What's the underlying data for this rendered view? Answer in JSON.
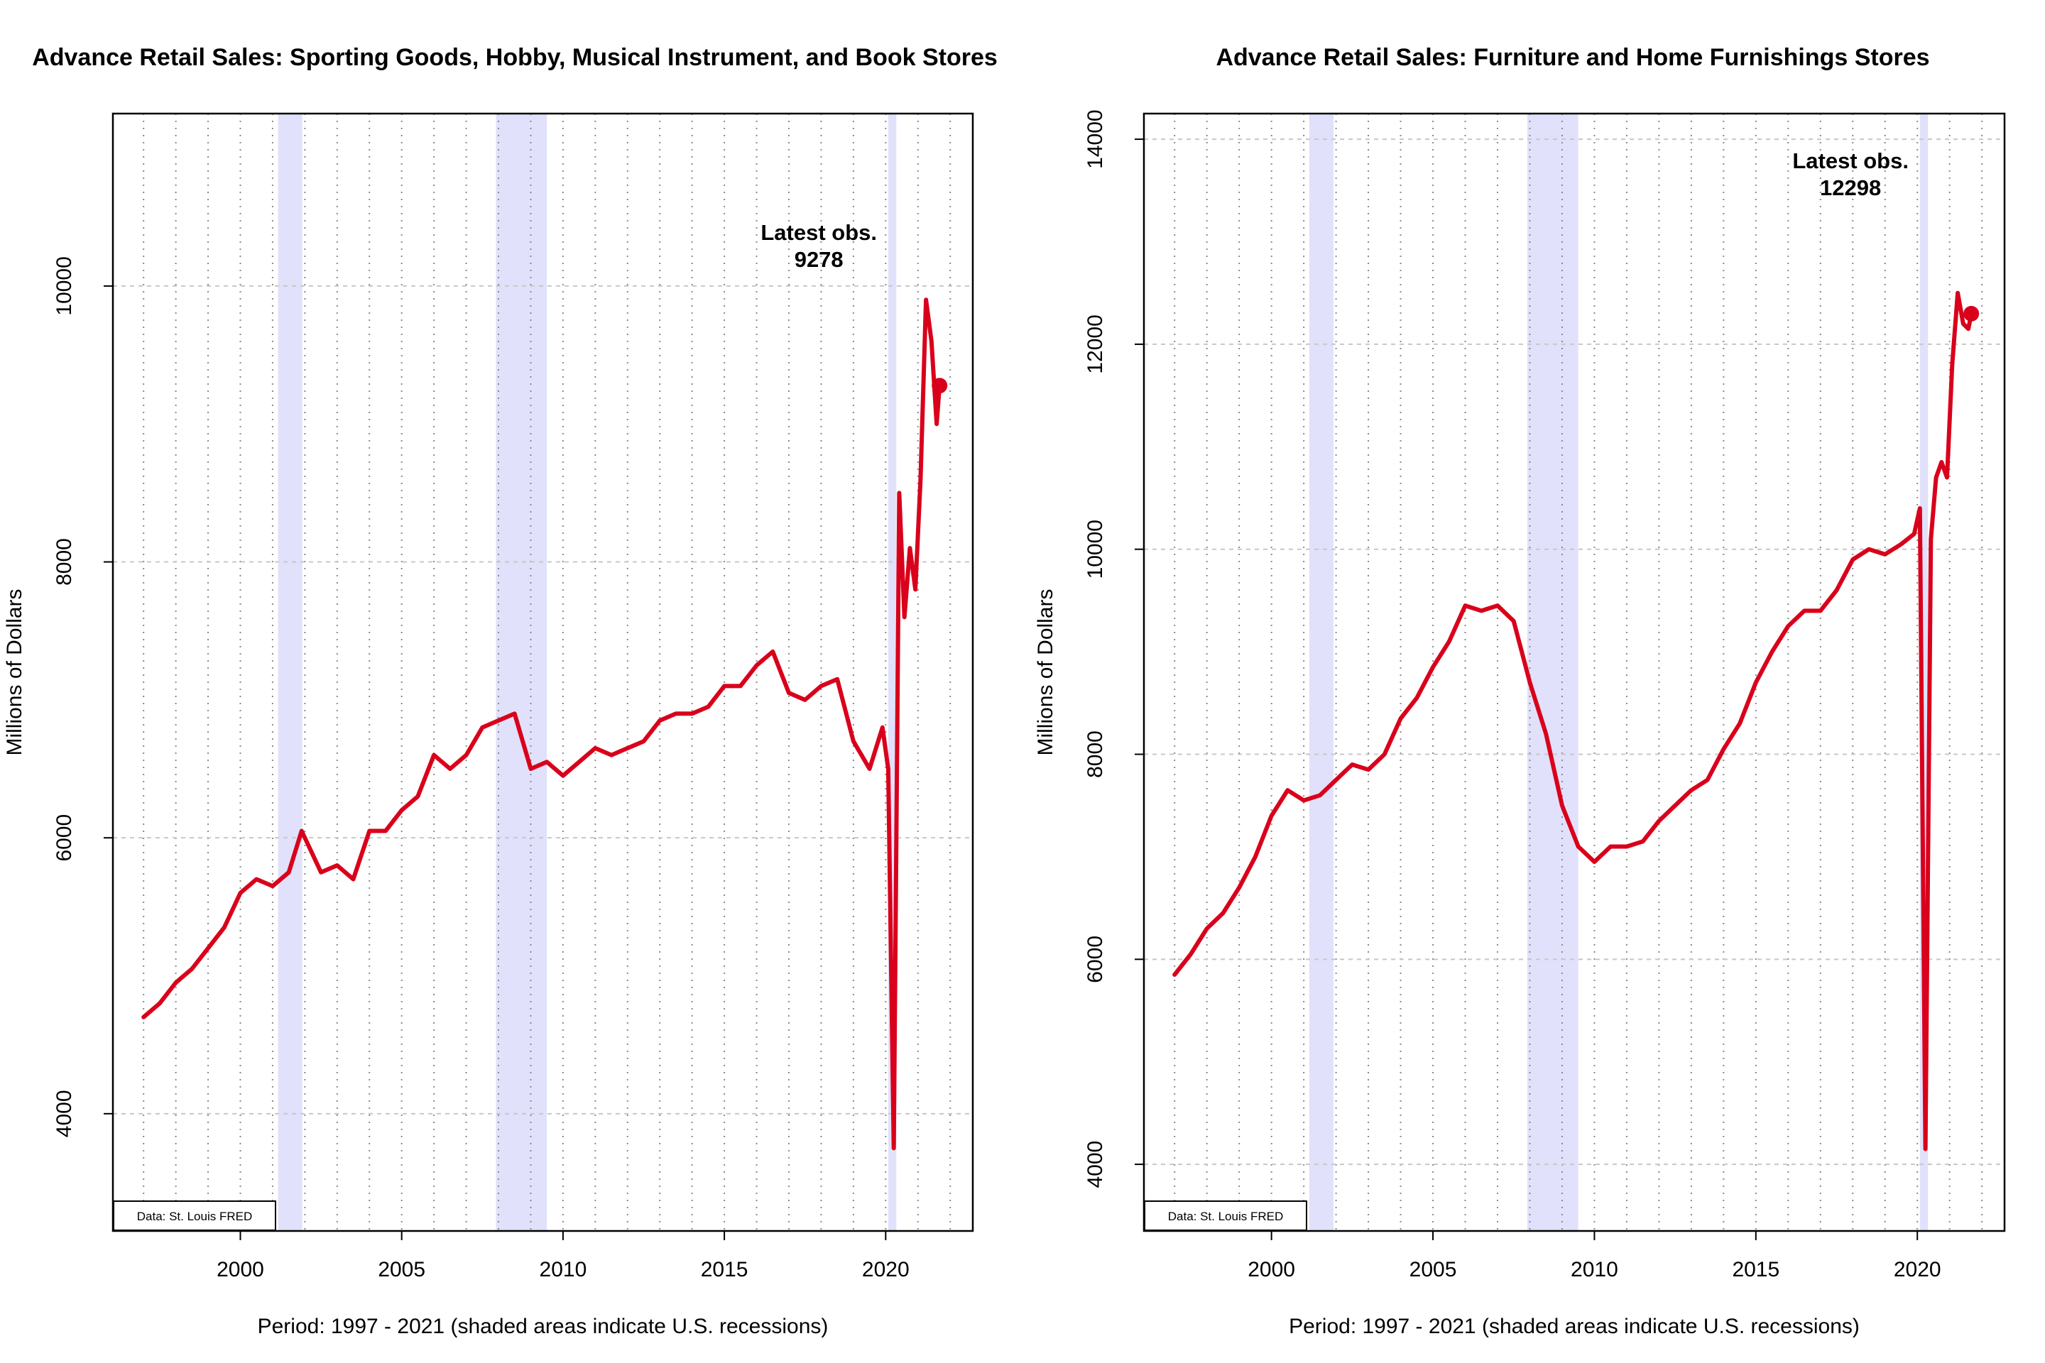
{
  "colors": {
    "series": "#d9001b",
    "recession": "#e1e1fb",
    "grid": "#c8c8c8",
    "frame": "#000000"
  },
  "chart_data": [
    {
      "type": "line",
      "title": "Advance Retail Sales: Sporting Goods, Hobby, Musical Instrument, and Book Stores",
      "xlabel": "Period: 1997 - 2021 (shaded areas indicate U.S. recessions)",
      "ylabel": "Millions of Dollars",
      "xlim": [
        1996.05,
        2022.7
      ],
      "ylim": [
        3150,
        11250
      ],
      "xticks": [
        2000,
        2005,
        2010,
        2015,
        2020
      ],
      "yticks": [
        4000,
        6000,
        8000,
        10000
      ],
      "grid": true,
      "recessions": [
        [
          2001.17,
          2001.92
        ],
        [
          2007.92,
          2009.5
        ],
        [
          2020.08,
          2020.33
        ]
      ],
      "source_note": "Data: St. Louis FRED",
      "latest_label": "Latest obs.",
      "latest_value": "9278",
      "series": [
        {
          "x": [
            1997.0,
            1997.5,
            1998.0,
            1998.5,
            1999.0,
            1999.5,
            2000.0,
            2000.5,
            2001.0,
            2001.5,
            2001.9,
            2002.5,
            2003.0,
            2003.5,
            2004.0,
            2004.5,
            2005.0,
            2005.5,
            2006.0,
            2006.5,
            2007.0,
            2007.5,
            2008.0,
            2008.5,
            2009.0,
            2009.5,
            2010.0,
            2010.5,
            2011.0,
            2011.5,
            2012.0,
            2012.5,
            2013.0,
            2013.5,
            2014.0,
            2014.5,
            2015.0,
            2015.5,
            2016.0,
            2016.5,
            2017.0,
            2017.5,
            2018.0,
            2018.5,
            2019.0,
            2019.5,
            2019.9,
            2020.08,
            2020.25,
            2020.42,
            2020.58,
            2020.75,
            2020.92,
            2021.08,
            2021.25,
            2021.42,
            2021.58,
            2021.67
          ],
          "y": [
            4700,
            4800,
            4950,
            5050,
            5200,
            5350,
            5600,
            5700,
            5650,
            5750,
            6050,
            5750,
            5800,
            5700,
            6050,
            6050,
            6200,
            6300,
            6600,
            6500,
            6600,
            6800,
            6850,
            6900,
            6500,
            6550,
            6450,
            6550,
            6650,
            6600,
            6650,
            6700,
            6850,
            6900,
            6900,
            6950,
            7100,
            7100,
            7250,
            7350,
            7050,
            7000,
            7100,
            7150,
            6700,
            6500,
            6800,
            6500,
            3750,
            8500,
            7600,
            8100,
            7800,
            8600,
            9900,
            9600,
            9000,
            9278
          ]
        }
      ]
    },
    {
      "type": "line",
      "title": "Advance Retail Sales: Furniture and Home Furnishings Stores",
      "xlabel": "Period: 1997 - 2021 (shaded areas indicate U.S. recessions)",
      "ylabel": "Millions of Dollars",
      "xlim": [
        1996.05,
        2022.7
      ],
      "ylim": [
        3350,
        14250
      ],
      "xticks": [
        2000,
        2005,
        2010,
        2015,
        2020
      ],
      "yticks": [
        4000,
        6000,
        8000,
        10000,
        12000,
        14000
      ],
      "grid": true,
      "recessions": [
        [
          2001.17,
          2001.92
        ],
        [
          2007.92,
          2009.5
        ],
        [
          2020.08,
          2020.33
        ]
      ],
      "source_note": "Data: St. Louis FRED",
      "latest_label": "Latest obs.",
      "latest_value": "12298",
      "series": [
        {
          "x": [
            1997.0,
            1997.5,
            1998.0,
            1998.5,
            1999.0,
            1999.5,
            2000.0,
            2000.5,
            2001.0,
            2001.5,
            2002.0,
            2002.5,
            2003.0,
            2003.5,
            2004.0,
            2004.5,
            2005.0,
            2005.5,
            2006.0,
            2006.5,
            2007.0,
            2007.5,
            2008.0,
            2008.5,
            2009.0,
            2009.5,
            2010.0,
            2010.5,
            2011.0,
            2011.5,
            2012.0,
            2012.5,
            2013.0,
            2013.5,
            2014.0,
            2014.5,
            2015.0,
            2015.5,
            2016.0,
            2016.5,
            2017.0,
            2017.5,
            2018.0,
            2018.5,
            2019.0,
            2019.5,
            2019.9,
            2020.08,
            2020.25,
            2020.42,
            2020.58,
            2020.75,
            2020.92,
            2021.08,
            2021.25,
            2021.42,
            2021.58,
            2021.67
          ],
          "y": [
            5850,
            6050,
            6300,
            6450,
            6700,
            7000,
            7400,
            7650,
            7550,
            7600,
            7750,
            7900,
            7850,
            8000,
            8350,
            8550,
            8850,
            9100,
            9450,
            9400,
            9450,
            9300,
            8700,
            8200,
            7500,
            7100,
            6950,
            7100,
            7100,
            7150,
            7350,
            7500,
            7650,
            7750,
            8050,
            8300,
            8700,
            9000,
            9250,
            9400,
            9400,
            9600,
            9900,
            10000,
            9950,
            10050,
            10150,
            10400,
            4150,
            10100,
            10700,
            10850,
            10700,
            11800,
            12500,
            12200,
            12150,
            12298
          ]
        }
      ]
    }
  ]
}
